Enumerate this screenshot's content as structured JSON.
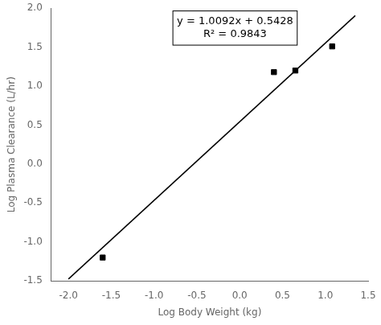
{
  "chart_data": {
    "type": "scatter",
    "xlabel": "Log Body Weight (kg)",
    "ylabel": "Log Plasma Clearance (L/hr)",
    "annotation": [
      "y = 1.0092x + 0.5428",
      "R² = 0.9843"
    ],
    "series": [
      {
        "type": "line",
        "color": "#000000",
        "line_style": "solid",
        "x": [
          -2.0,
          1.35
        ],
        "values": [
          -1.4756,
          1.90522
        ]
      },
      {
        "type": "scatter",
        "color": "#000000",
        "marker": "square",
        "x": [
          -1.6,
          0.4,
          0.65,
          1.08
        ],
        "values": [
          -1.2,
          1.18,
          1.2,
          1.51
        ]
      }
    ],
    "xlim": [
      -2.2,
      1.5
    ],
    "ylim": [
      -1.5,
      2.0
    ],
    "xticks": [
      {
        "value": -2,
        "label": "-2.0"
      },
      -1.5,
      {
        "value": -1,
        "label": "-1.0"
      },
      -0.5,
      {
        "value": 0,
        "label": "0.0"
      },
      0.5,
      {
        "value": 1,
        "label": "1.0"
      },
      1.5
    ],
    "yticks": [
      -1.5,
      {
        "value": -1,
        "label": "-1.0"
      },
      -0.5,
      {
        "value": 0,
        "label": "0.0"
      },
      0.5,
      {
        "value": 1,
        "label": "1.0"
      },
      1.5,
      {
        "value": 2,
        "label": "2.0"
      }
    ],
    "grid": false
  }
}
